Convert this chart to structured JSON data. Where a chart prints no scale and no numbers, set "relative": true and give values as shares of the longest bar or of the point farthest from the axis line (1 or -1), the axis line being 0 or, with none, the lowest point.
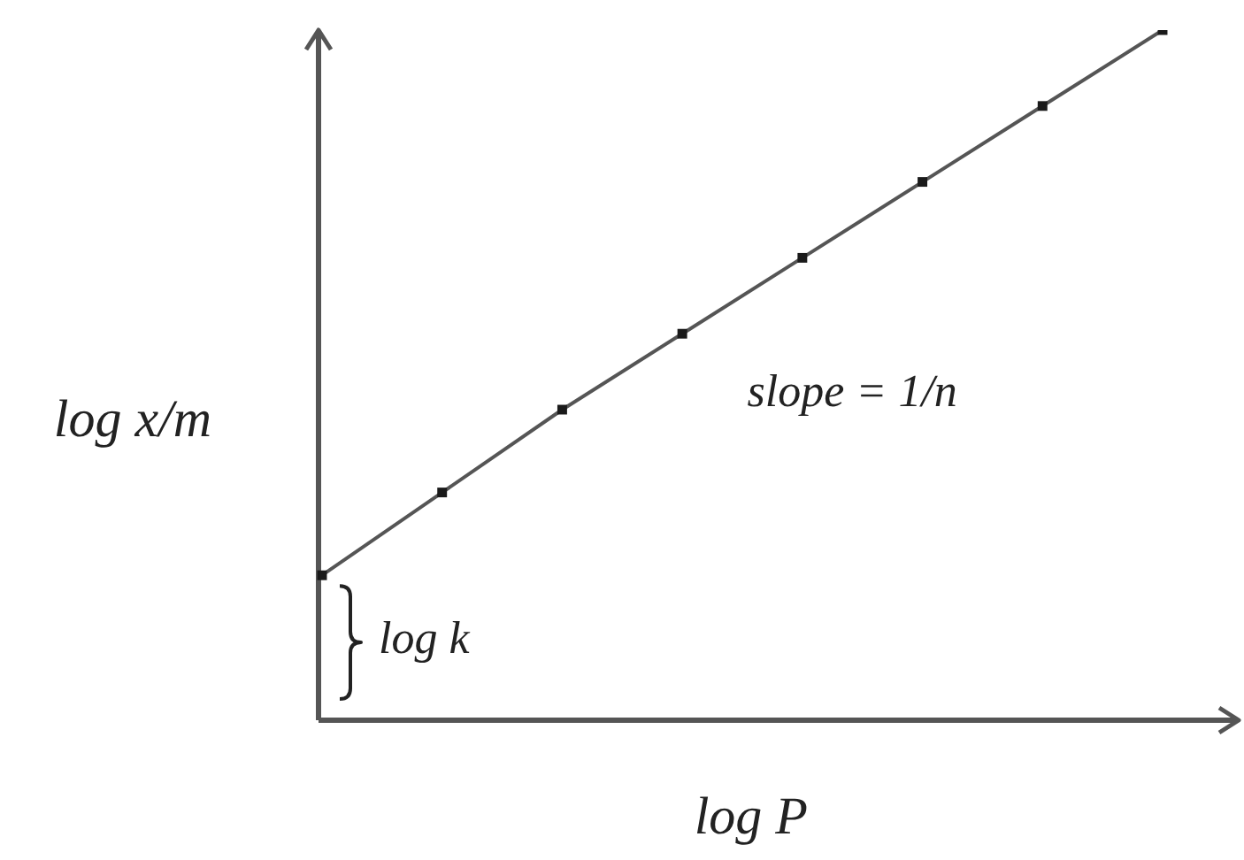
{
  "chart_data": {
    "type": "line",
    "relative": true,
    "xlabel": "log P",
    "ylabel": "log x/m",
    "categories": [
      null,
      null,
      null,
      null,
      null,
      null,
      null,
      null
    ],
    "series": [
      {
        "color": "#555555",
        "values": [
          0.21,
          0.33,
          0.45,
          0.56,
          0.67,
          0.78,
          0.89,
          1
        ]
      }
    ],
    "marker": "square",
    "line_style": "solid",
    "annotations": [
      "slope = 1/n",
      "log k"
    ]
  }
}
